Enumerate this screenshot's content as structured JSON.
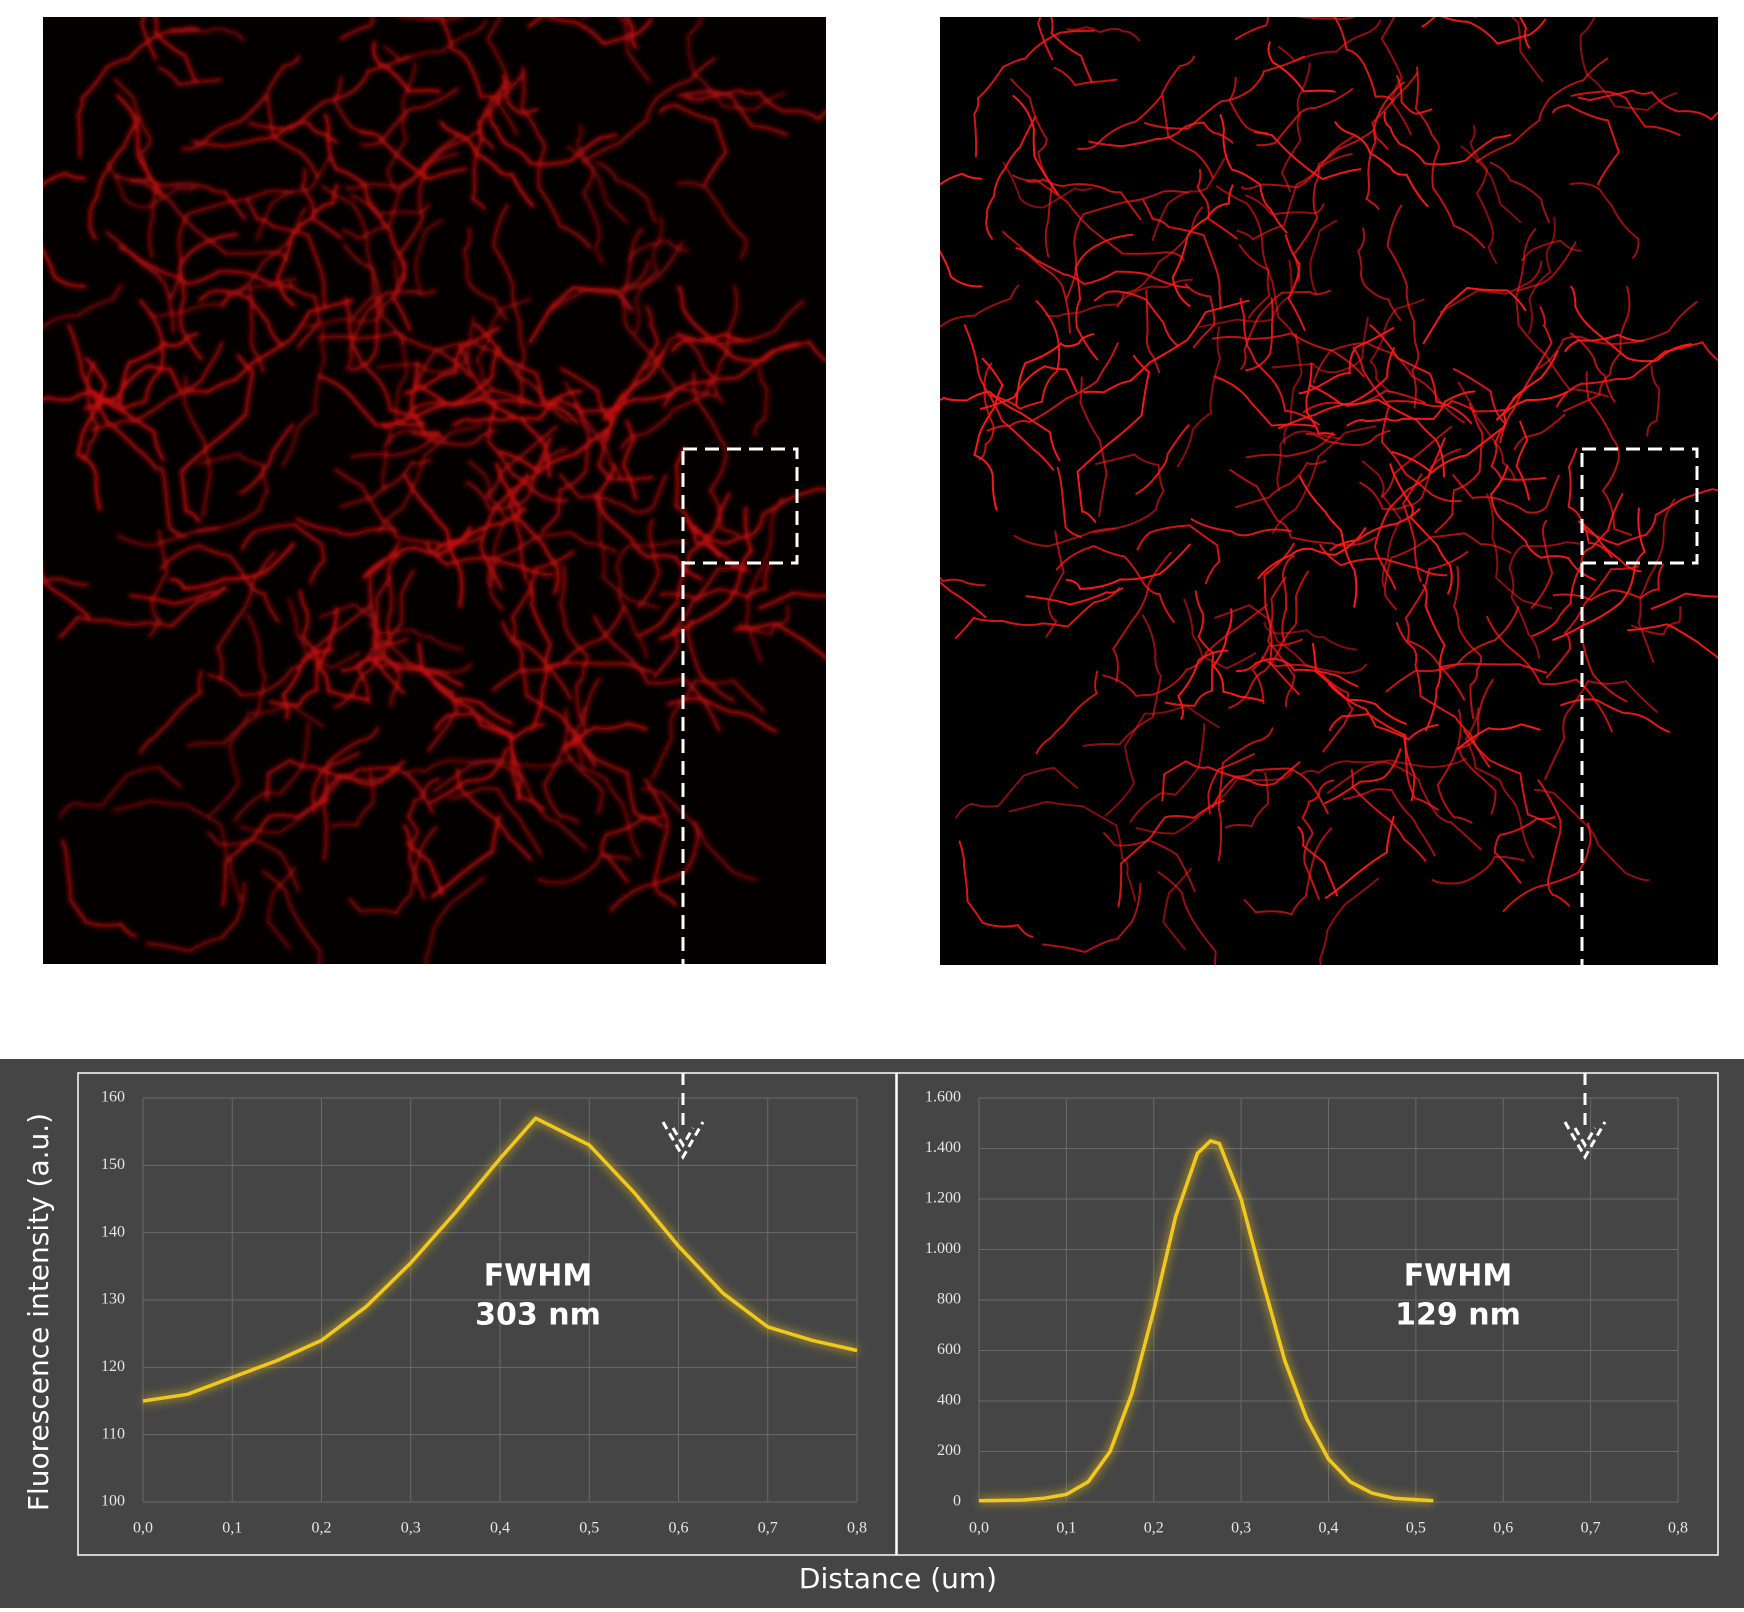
{
  "axis_labels": {
    "y": "Fluorescence intensity (a.u.)",
    "x": "Distance (um)"
  },
  "chart_data": [
    {
      "type": "line",
      "annotation": [
        "FWHM",
        "303 nm"
      ],
      "color": "#f2c81b",
      "grid": true,
      "x": [
        0,
        0.05,
        0.1,
        0.15,
        0.2,
        0.25,
        0.3,
        0.35,
        0.4,
        0.44,
        0.5,
        0.55,
        0.6,
        0.65,
        0.7,
        0.75,
        0.8
      ],
      "series": [
        {
          "values": [
            115,
            116,
            118.5,
            121,
            124,
            129,
            135.5,
            143,
            151,
            157,
            153,
            146,
            138,
            131,
            126,
            124,
            122.5
          ]
        }
      ],
      "xlim": [
        0,
        0.8
      ],
      "ylim": [
        100,
        160
      ],
      "xticks": [
        {
          "value": 0,
          "label": "0,0"
        },
        {
          "value": 0.1,
          "label": "0,1"
        },
        {
          "value": 0.2,
          "label": "0,2"
        },
        {
          "value": 0.3,
          "label": "0,3"
        },
        {
          "value": 0.4,
          "label": "0,4"
        },
        {
          "value": 0.5,
          "label": "0,5"
        },
        {
          "value": 0.6,
          "label": "0,6"
        },
        {
          "value": 0.7,
          "label": "0,7"
        },
        {
          "value": 0.8,
          "label": "0,8"
        }
      ],
      "yticks": [
        100,
        110,
        120,
        130,
        140,
        150,
        160
      ]
    },
    {
      "type": "line",
      "annotation": [
        "FWHM",
        "129 nm"
      ],
      "color": "#f2c81b",
      "grid": true,
      "x": [
        0,
        0.05,
        0.075,
        0.1,
        0.125,
        0.15,
        0.175,
        0.2,
        0.225,
        0.25,
        0.265,
        0.275,
        0.3,
        0.325,
        0.35,
        0.375,
        0.4,
        0.425,
        0.45,
        0.475,
        0.52
      ],
      "series": [
        {
          "values": [
            5,
            8,
            15,
            30,
            80,
            200,
            430,
            760,
            1130,
            1380,
            1430,
            1420,
            1200,
            870,
            560,
            330,
            170,
            80,
            35,
            15,
            5
          ]
        }
      ],
      "xlim": [
        0,
        0.8
      ],
      "ylim": [
        0,
        1600
      ],
      "xticks": [
        {
          "value": 0,
          "label": "0,0"
        },
        {
          "value": 0.1,
          "label": "0,1"
        },
        {
          "value": 0.2,
          "label": "0,2"
        },
        {
          "value": 0.3,
          "label": "0,3"
        },
        {
          "value": 0.4,
          "label": "0,4"
        },
        {
          "value": 0.5,
          "label": "0,5"
        },
        {
          "value": 0.6,
          "label": "0,6"
        },
        {
          "value": 0.7,
          "label": "0,7"
        },
        {
          "value": 0.8,
          "label": "0,8"
        }
      ],
      "yticks": [
        0,
        200,
        400,
        600,
        800,
        {
          "value": 1000,
          "label": "1.000"
        },
        {
          "value": 1200,
          "label": "1.200"
        },
        {
          "value": 1400,
          "label": "1.400"
        },
        {
          "value": 1600,
          "label": "1.600"
        }
      ]
    }
  ]
}
